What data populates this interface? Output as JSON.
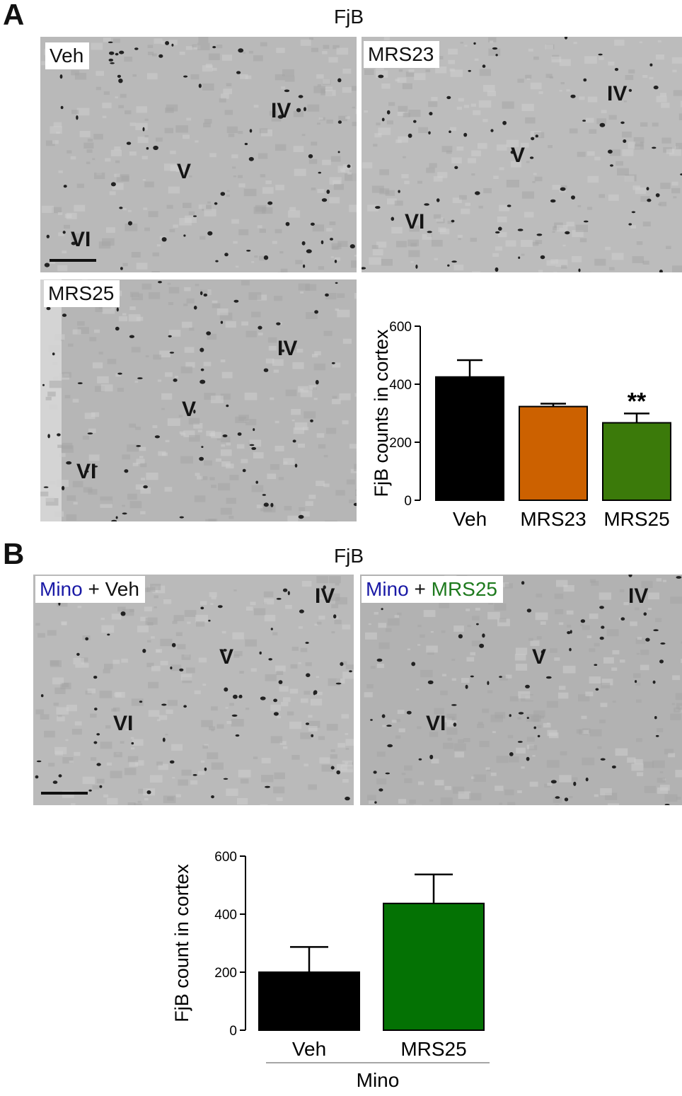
{
  "panels": {
    "A": {
      "letter": "A",
      "title": "FjB",
      "images": [
        {
          "label": "Veh",
          "layers": [
            "IV",
            "V",
            "VI"
          ]
        },
        {
          "label": "MRS23",
          "layers": [
            "IV",
            "V",
            "VI"
          ]
        },
        {
          "label": "MRS25",
          "layers": [
            "IV",
            "V",
            "VI"
          ]
        }
      ]
    },
    "B": {
      "letter": "B",
      "title": "FjB",
      "images": [
        {
          "label_part1": "Mino",
          "label_plus": "+",
          "label_part2": "Veh",
          "layers": [
            "IV",
            "V",
            "VI"
          ]
        },
        {
          "label_part1": "Mino",
          "label_plus": "+",
          "label_part2": "MRS25",
          "layers": [
            "IV",
            "V",
            "VI"
          ]
        }
      ]
    }
  },
  "colors": {
    "mino_blue": "#1a1aa6",
    "mrs25_green": "#1e7a1e",
    "veh_black": "#000000",
    "mrs23_orange": "#cc6100",
    "mrs25_dark_green": "#3b7a0a",
    "bar_green_b": "#047204"
  },
  "chart_data": [
    {
      "type": "bar",
      "categories": [
        "Veh",
        "MRS23",
        "MRS25"
      ],
      "values": [
        425,
        323,
        267
      ],
      "errors": [
        58,
        10,
        32
      ],
      "colors": [
        "#000000",
        "#cc6100",
        "#3b7a0a"
      ],
      "significance": [
        "",
        "",
        "**"
      ],
      "ylabel": "FjB counts in cortex",
      "ylim": [
        0,
        600
      ],
      "yticks": [
        0,
        200,
        400,
        600
      ]
    },
    {
      "type": "bar",
      "categories": [
        "Veh",
        "MRS25"
      ],
      "values": [
        200,
        437
      ],
      "errors": [
        87,
        100
      ],
      "colors": [
        "#000000",
        "#047204"
      ],
      "ylabel": "FjB count in cortex",
      "group_label": "Mino",
      "ylim": [
        0,
        600
      ],
      "yticks": [
        0,
        200,
        400,
        600
      ]
    }
  ]
}
